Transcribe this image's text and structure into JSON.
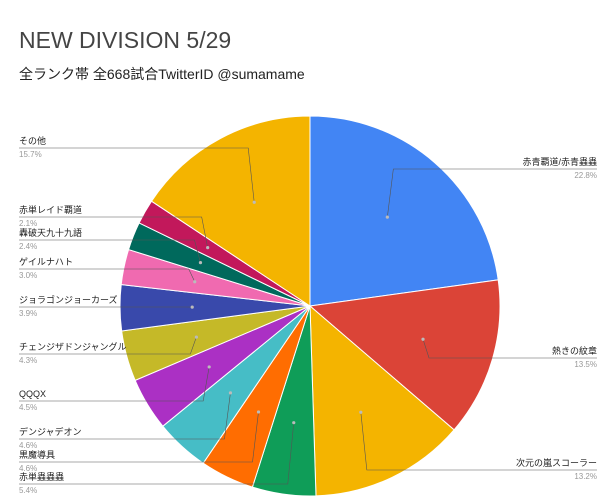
{
  "chart_data": {
    "type": "pie",
    "title": "NEW DIVISION 5/29",
    "subtitle": "全ランク帯 全668試合TwitterID @sumamame",
    "slices": [
      {
        "name": "赤青覇道/赤青蟲蟲",
        "pct": "22.8%",
        "value": 22.8,
        "color": "#4285f4"
      },
      {
        "name": "熱きの紋章",
        "pct": "13.5%",
        "value": 13.5,
        "color": "#db4437"
      },
      {
        "name": "次元の嵐スコーラー",
        "pct": "13.2%",
        "value": 13.2,
        "color": "#f4b400"
      },
      {
        "name": "赤単蟲蟲蟲",
        "pct": "5.4%",
        "value": 5.4,
        "color": "#0f9d58"
      },
      {
        "name": "黒魔導具",
        "pct": "4.6%",
        "value": 4.6,
        "color": "#ff6d01"
      },
      {
        "name": "デンジャデオン",
        "pct": "4.6%",
        "value": 4.6,
        "color": "#46bdc6"
      },
      {
        "name": "QQQX",
        "pct": "4.5%",
        "value": 4.5,
        "color": "#ab30c4"
      },
      {
        "name": "チェンジザドンジャングル",
        "pct": "4.3%",
        "value": 4.3,
        "color": "#c5b928"
      },
      {
        "name": "ジョラゴンジョーカーズ",
        "pct": "3.9%",
        "value": 3.9,
        "color": "#3949ab"
      },
      {
        "name": "ゲイルナハト",
        "pct": "3.0%",
        "value": 3.0,
        "color": "#f06ab0"
      },
      {
        "name": "轟破天九十九語",
        "pct": "2.4%",
        "value": 2.4,
        "color": "#00695c"
      },
      {
        "name": "赤単レイド覇道",
        "pct": "2.1%",
        "value": 2.1,
        "color": "#c2185b"
      },
      {
        "name": "その他",
        "pct": "15.7%",
        "value": 15.7,
        "color": "#f4b400"
      }
    ]
  }
}
